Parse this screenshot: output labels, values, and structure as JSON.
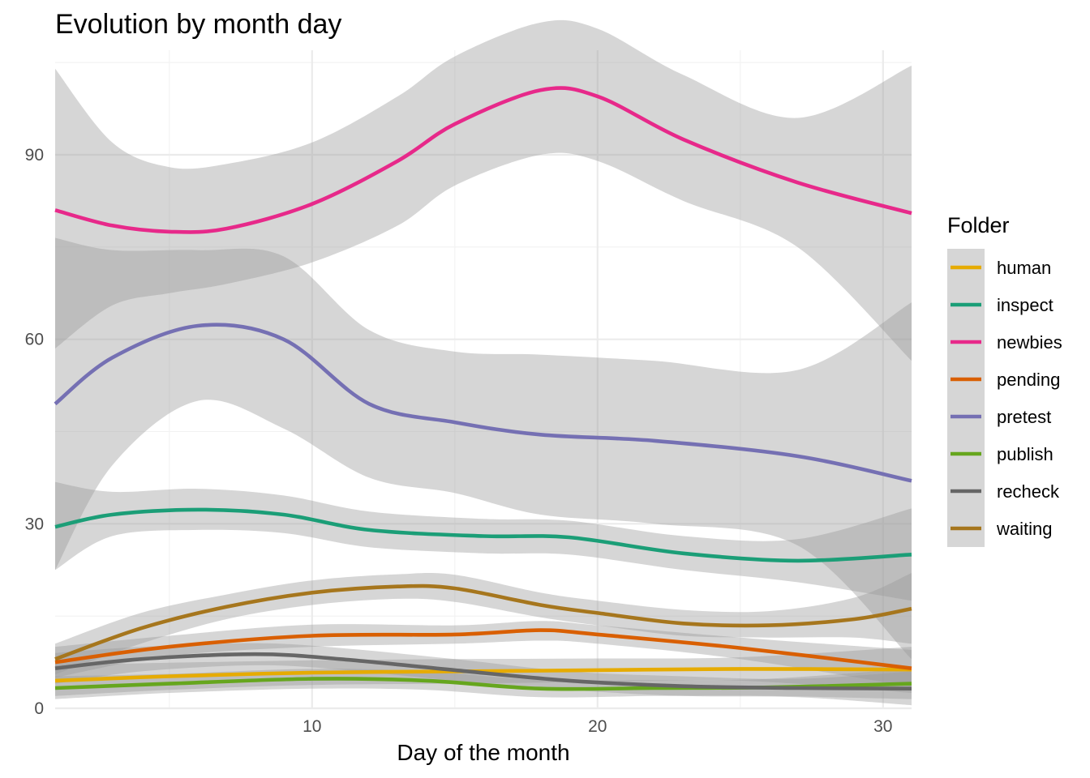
{
  "chart_data": {
    "type": "line",
    "title": "Evolution by month day",
    "xlabel": "Day of the month",
    "ylabel": "",
    "xlim": [
      1,
      31
    ],
    "ylim": [
      0,
      107
    ],
    "x_ticks": [
      10,
      20,
      30
    ],
    "y_ticks": [
      0,
      30,
      60,
      90
    ],
    "legend": {
      "title": "Folder",
      "position": "right"
    },
    "grid": true,
    "series": [
      {
        "name": "human",
        "color": "#E6AB02",
        "x": [
          1,
          5,
          10,
          15,
          20,
          25,
          31
        ],
        "values": [
          4.5,
          5.2,
          5.8,
          6.0,
          6.2,
          6.4,
          6.3
        ],
        "lower": [
          2.0,
          3.0,
          3.8,
          4.0,
          4.3,
          4.5,
          2.5
        ],
        "upper": [
          7.0,
          7.4,
          7.8,
          8.0,
          8.1,
          8.3,
          10.0
        ]
      },
      {
        "name": "inspect",
        "color": "#1B9E77",
        "x": [
          1,
          3,
          6,
          9,
          12,
          16,
          19,
          23,
          27,
          31
        ],
        "values": [
          29.5,
          31.5,
          32.3,
          31.5,
          29.0,
          28.0,
          27.8,
          25.2,
          24.0,
          25.0
        ],
        "lower": [
          22.5,
          28.0,
          29.0,
          28.5,
          26.2,
          25.2,
          25.0,
          22.5,
          20.5,
          17.5
        ],
        "upper": [
          36.8,
          35.2,
          35.7,
          34.6,
          32.0,
          30.8,
          30.5,
          28.0,
          27.5,
          32.5
        ]
      },
      {
        "name": "newbies",
        "color": "#E7298A",
        "x": [
          1,
          3,
          5,
          7,
          10,
          13,
          15,
          18,
          20,
          23,
          27,
          31
        ],
        "values": [
          81.0,
          78.5,
          77.5,
          78.0,
          82.0,
          89.0,
          95.0,
          100.5,
          99.5,
          92.5,
          85.5,
          80.5
        ],
        "lower": [
          58.5,
          65.5,
          67.5,
          69.0,
          72.5,
          78.5,
          85.0,
          90.0,
          89.0,
          82.5,
          75.0,
          56.5
        ],
        "upper": [
          104.0,
          92.0,
          88.0,
          88.5,
          92.0,
          99.5,
          106.0,
          111.5,
          110.5,
          103.0,
          96.0,
          104.5
        ]
      },
      {
        "name": "pending",
        "color": "#D95F02",
        "x": [
          1,
          5,
          10,
          15,
          18,
          20,
          25,
          31
        ],
        "values": [
          7.5,
          10.0,
          11.8,
          12.0,
          12.7,
          12.0,
          9.8,
          6.5
        ],
        "lower": [
          5.0,
          8.5,
          10.0,
          10.5,
          11.0,
          10.5,
          8.0,
          3.5
        ],
        "upper": [
          10.0,
          11.8,
          13.6,
          13.5,
          14.2,
          13.5,
          11.5,
          9.5
        ]
      },
      {
        "name": "pretest",
        "color": "#7570B3",
        "x": [
          1,
          3,
          6,
          9,
          12,
          15,
          18,
          22,
          27,
          31
        ],
        "values": [
          49.5,
          57.0,
          62.2,
          60.0,
          49.5,
          46.5,
          44.5,
          43.5,
          41.0,
          37.0
        ],
        "lower": [
          22.5,
          39.5,
          50.0,
          45.5,
          37.5,
          35.0,
          31.5,
          30.0,
          26.5,
          8.0
        ],
        "upper": [
          76.5,
          74.5,
          74.5,
          73.5,
          61.5,
          58.0,
          57.5,
          56.5,
          55.0,
          66.0
        ]
      },
      {
        "name": "publish",
        "color": "#66A61E",
        "x": [
          1,
          5,
          10,
          14,
          18,
          22,
          26,
          31
        ],
        "values": [
          3.3,
          4.0,
          4.8,
          4.5,
          3.2,
          3.3,
          3.4,
          4.0
        ],
        "lower": [
          1.5,
          2.5,
          3.2,
          3.0,
          1.8,
          2.0,
          2.0,
          1.5
        ],
        "upper": [
          5.2,
          5.6,
          6.4,
          6.0,
          4.6,
          4.6,
          4.8,
          6.5
        ]
      },
      {
        "name": "recheck",
        "color": "#666666",
        "x": [
          1,
          4,
          8,
          11,
          15,
          19,
          23,
          27,
          31
        ],
        "values": [
          6.5,
          8.0,
          8.8,
          8.0,
          6.2,
          4.5,
          3.6,
          3.3,
          3.2
        ],
        "lower": [
          4.0,
          6.0,
          7.0,
          6.3,
          4.5,
          3.0,
          2.0,
          1.8,
          0.5
        ],
        "upper": [
          9.0,
          10.0,
          10.6,
          9.8,
          8.0,
          6.0,
          5.2,
          4.8,
          6.0
        ]
      },
      {
        "name": "waiting",
        "color": "#A6761D",
        "x": [
          1,
          4,
          7,
          10,
          13,
          15,
          18,
          20,
          23,
          26,
          29,
          31
        ],
        "values": [
          8.0,
          13.0,
          16.5,
          18.8,
          19.8,
          19.5,
          16.8,
          15.5,
          13.8,
          13.5,
          14.5,
          16.2
        ],
        "lower": [
          5.5,
          10.5,
          14.5,
          16.8,
          17.8,
          17.3,
          14.8,
          13.5,
          11.8,
          11.5,
          11.5,
          10.5
        ],
        "upper": [
          10.5,
          15.5,
          18.5,
          20.8,
          21.8,
          21.7,
          18.8,
          17.5,
          16.0,
          15.8,
          18.0,
          22.0
        ]
      }
    ]
  }
}
